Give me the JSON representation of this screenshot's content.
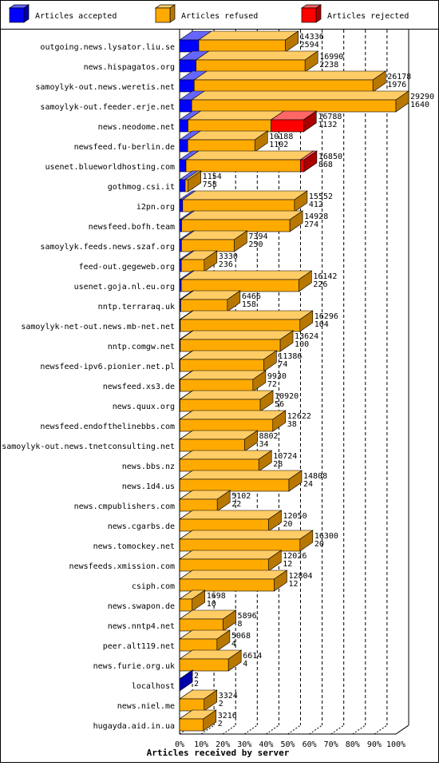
{
  "chart_data": {
    "type": "bar",
    "orientation": "horizontal",
    "stacked": true,
    "percent_scale": true,
    "xlabel": "Articles received by server",
    "x_ticks": [
      "0%",
      "10%",
      "20%",
      "30%",
      "40%",
      "50%",
      "60%",
      "70%",
      "80%",
      "90%",
      "100%"
    ],
    "legend": [
      {
        "name": "Articles accepted",
        "color": "#0000ff"
      },
      {
        "name": "Articles refused",
        "color": "#ffaa00"
      },
      {
        "name": "Articles rejected",
        "color": "#ff0000"
      }
    ],
    "categories": [
      "outgoing.news.lysator.liu.se",
      "news.hispagatos.org",
      "samoylyk-out.news.weretis.net",
      "samoylyk-out.feeder.erje.net",
      "news.neodome.net",
      "newsfeed.fu-berlin.de",
      "usenet.blueworldhosting.com",
      "gothmog.csi.it",
      "i2pn.org",
      "newsfeed.bofh.team",
      "samoylyk.feeds.news.szaf.org",
      "feed-out.gegeweb.org",
      "usenet.goja.nl.eu.org",
      "nntp.terraraq.uk",
      "samoylyk-net-out.news.mb-net.net",
      "nntp.comgw.net",
      "newsfeed-ipv6.pionier.net.pl",
      "newsfeed.xs3.de",
      "news.quux.org",
      "newsfeed.endofthelinebbs.com",
      "samoylyk-out.news.tnetconsulting.net",
      "news.bbs.nz",
      "news.1d4.us",
      "news.cmpublishers.com",
      "news.cgarbs.de",
      "news.tomockey.net",
      "newsfeeds.xmission.com",
      "csiph.com",
      "news.swapon.de",
      "news.nntp4.net",
      "peer.alt119.net",
      "news.furie.org.uk",
      "localhost",
      "news.niel.me",
      "hugayda.aid.in.ua"
    ],
    "labels_total": [
      14336,
      16990,
      26178,
      29290,
      16788,
      10188,
      16850,
      1154,
      15552,
      14928,
      7394,
      3330,
      16142,
      6466,
      16296,
      13624,
      11386,
      9930,
      10920,
      12622,
      8802,
      10724,
      14808,
      5102,
      12050,
      16300,
      12026,
      12804,
      1698,
      5896,
      5068,
      6614,
      2,
      3324,
      3216
    ],
    "labels_accepted": [
      2594,
      2238,
      1976,
      1640,
      1132,
      1102,
      868,
      758,
      412,
      274,
      250,
      236,
      226,
      158,
      104,
      100,
      74,
      72,
      56,
      38,
      34,
      28,
      24,
      22,
      20,
      20,
      12,
      12,
      10,
      8,
      4,
      4,
      2,
      2,
      2
    ],
    "series": [
      {
        "name": "Articles accepted",
        "values": [
          2594,
          2238,
          1976,
          1640,
          1132,
          1102,
          868,
          758,
          412,
          274,
          250,
          236,
          226,
          158,
          104,
          100,
          74,
          72,
          56,
          38,
          34,
          28,
          24,
          22,
          20,
          20,
          12,
          12,
          10,
          8,
          4,
          4,
          2,
          2,
          2
        ]
      },
      {
        "name": "Articles refused",
        "values": [
          11742,
          14752,
          24202,
          27650,
          11256,
          9086,
          15502,
          396,
          15140,
          14654,
          7144,
          3094,
          15916,
          6308,
          16192,
          13524,
          11312,
          9858,
          10864,
          12584,
          8768,
          10696,
          14784,
          5080,
          12030,
          16280,
          12014,
          12792,
          1688,
          5888,
          5064,
          6610,
          0,
          3322,
          3214
        ]
      },
      {
        "name": "Articles rejected",
        "values": [
          0,
          0,
          0,
          0,
          4400,
          0,
          480,
          0,
          0,
          0,
          0,
          0,
          0,
          0,
          0,
          0,
          0,
          0,
          0,
          0,
          0,
          0,
          0,
          0,
          0,
          0,
          0,
          0,
          0,
          0,
          0,
          0,
          0,
          0,
          0
        ]
      }
    ],
    "xlim": [
      0,
      29290
    ],
    "grid": true,
    "legend_position": "top"
  }
}
